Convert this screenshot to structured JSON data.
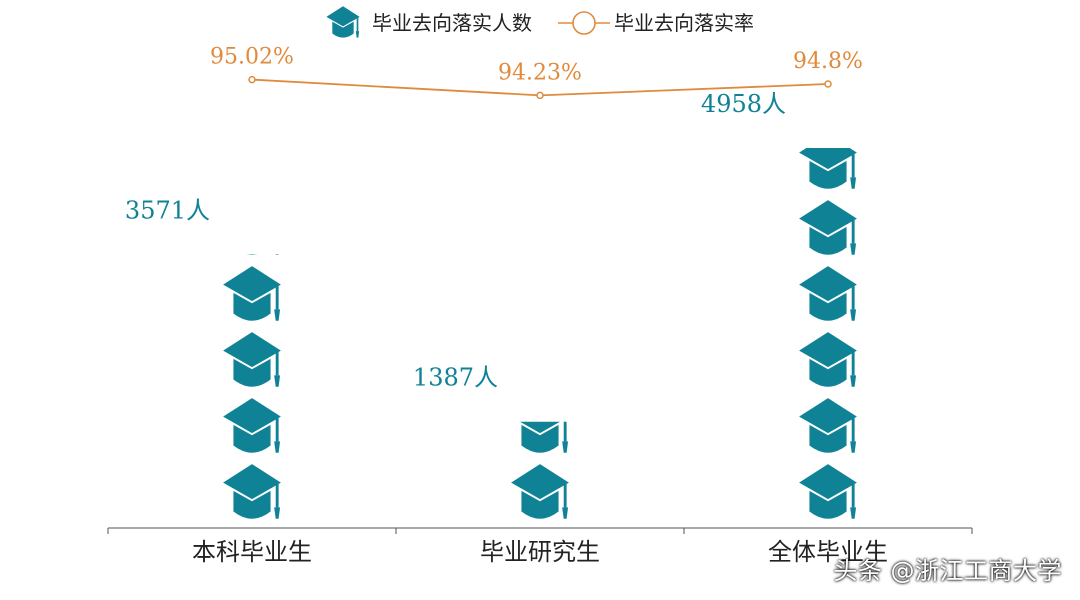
{
  "chart_data": {
    "type": "bar",
    "categories": [
      "本科毕业生",
      "毕业研究生",
      "全体毕业生"
    ],
    "series": [
      {
        "name": "毕业去向落实人数",
        "type": "pictograph",
        "values": [
          3571,
          1387,
          4958
        ],
        "labels": [
          "3571人",
          "1387人",
          "4958人"
        ]
      },
      {
        "name": "毕业去向落实率",
        "type": "line",
        "values": [
          95.02,
          94.23,
          94.8
        ],
        "labels": [
          "95.02%",
          "94.23%",
          "94.8%"
        ]
      }
    ],
    "legend_position": "top-center",
    "grid": false
  },
  "colors": {
    "bar": "#0f8296",
    "line": "#e08a3c",
    "axis": "#555555",
    "text": "#222222"
  },
  "icon": "graduation-cap-icon",
  "watermark": {
    "text": "头条 @浙江工商大学"
  }
}
